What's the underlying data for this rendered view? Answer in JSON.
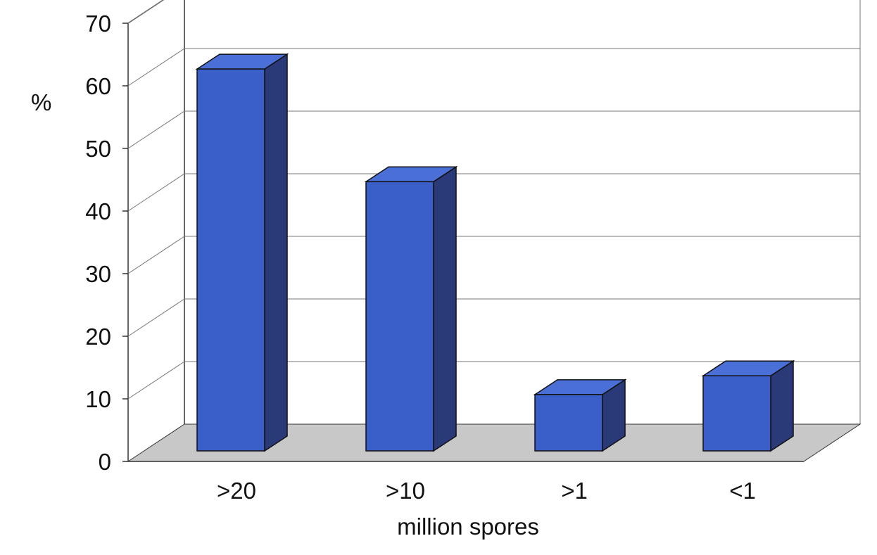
{
  "chart_data": {
    "type": "bar",
    "style": "3d-column",
    "categories": [
      ">20",
      ">10",
      ">1",
      "<1"
    ],
    "values": [
      61,
      43,
      9,
      12
    ],
    "ylim": [
      0,
      70
    ],
    "yticks": [
      "0",
      "10",
      "20",
      "30",
      "40",
      "50",
      "60",
      "70"
    ],
    "xlabel": "million spores",
    "ylabel": "%",
    "grid": true,
    "legend": "none",
    "colors": {
      "bar_front": "#3b5fc9",
      "bar_side": "#2a3a78",
      "bar_top": "#4a6fd6",
      "floor": "#c8c8c8",
      "grid": "#777777",
      "axis": "#333333"
    }
  }
}
